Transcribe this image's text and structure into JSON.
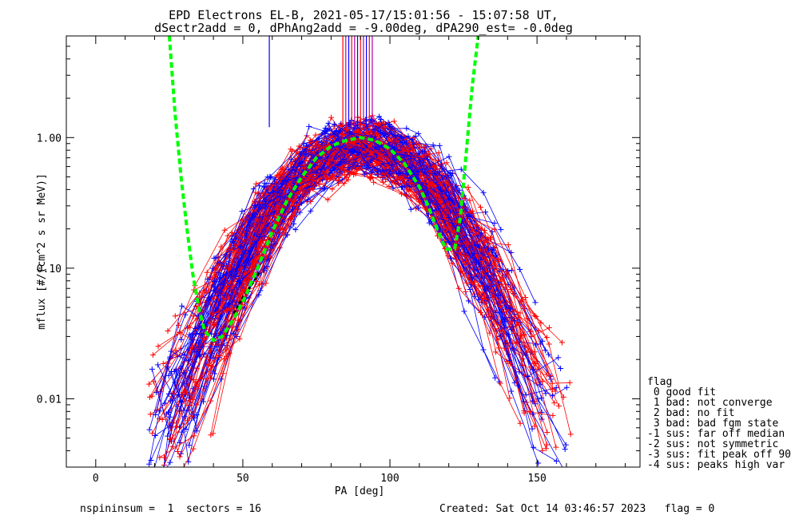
{
  "chart_data": {
    "type": "line",
    "title_line1": "EPD Electrons EL-B, 2021-05-17/15:01:56 - 15:07:58 UT,",
    "title_line2": "dSectr2add = 0, dPhAng2add = -9.00deg, dPA290_est=  -0.0deg",
    "xlabel": "PA [deg]",
    "ylabel": "mflux [#/(cm^2 s sr MeV)]",
    "xlim": [
      -10,
      185
    ],
    "ylim_log": [
      0.003,
      6
    ],
    "x_scale": "linear",
    "y_scale": "log",
    "xticks": [
      0,
      50,
      100,
      150
    ],
    "xtick_labels": [
      "0",
      "50",
      "100",
      "150"
    ],
    "yticks": [
      0.01,
      0.1,
      1.0
    ],
    "ytick_labels": [
      "0.01",
      "0.10",
      "1.00"
    ],
    "series_colors": {
      "sector_a": "#ff0000",
      "sector_b": "#0000ff",
      "fit": "#00ff00",
      "model": "#000000"
    },
    "fit_curve": {
      "x": [
        25,
        27,
        29,
        31,
        33,
        35,
        37,
        40,
        43,
        46,
        50,
        55,
        60,
        65,
        70,
        75,
        80,
        85,
        90,
        95,
        100,
        105,
        110,
        113,
        116,
        119,
        122,
        124,
        126,
        128,
        130
      ],
      "y": [
        6.0,
        1.5,
        0.5,
        0.2,
        0.09,
        0.05,
        0.033,
        0.028,
        0.03,
        0.038,
        0.055,
        0.1,
        0.19,
        0.33,
        0.5,
        0.7,
        0.86,
        0.95,
        1.0,
        0.95,
        0.82,
        0.63,
        0.42,
        0.3,
        0.2,
        0.14,
        0.14,
        0.25,
        0.8,
        2.5,
        6.0
      ]
    },
    "model_curve": {
      "x": [
        47,
        50,
        53,
        56
      ],
      "y": [
        0.045,
        0.06,
        0.075,
        0.095
      ]
    },
    "peak_lines": {
      "x": [
        59,
        84,
        85,
        86,
        87,
        88,
        89,
        90,
        91,
        92,
        93,
        94
      ],
      "y_bottom": 1.2,
      "y_top": 6.0
    }
  },
  "legend": {
    "title": "flag",
    "items": [
      " 0 good fit",
      " 1 bad: not converge",
      " 2 bad: no fit",
      " 3 bad: bad fgm state",
      "-1 sus: far off median",
      "-2 sus: not symmetric",
      "-3 sus: fit peak off 90",
      "-4 sus: peaks high var"
    ]
  },
  "footer": {
    "left": "nspininsum =  1  sectors = 16",
    "right": "Created: Sat Oct 14 03:46:57 2023   flag = 0"
  }
}
